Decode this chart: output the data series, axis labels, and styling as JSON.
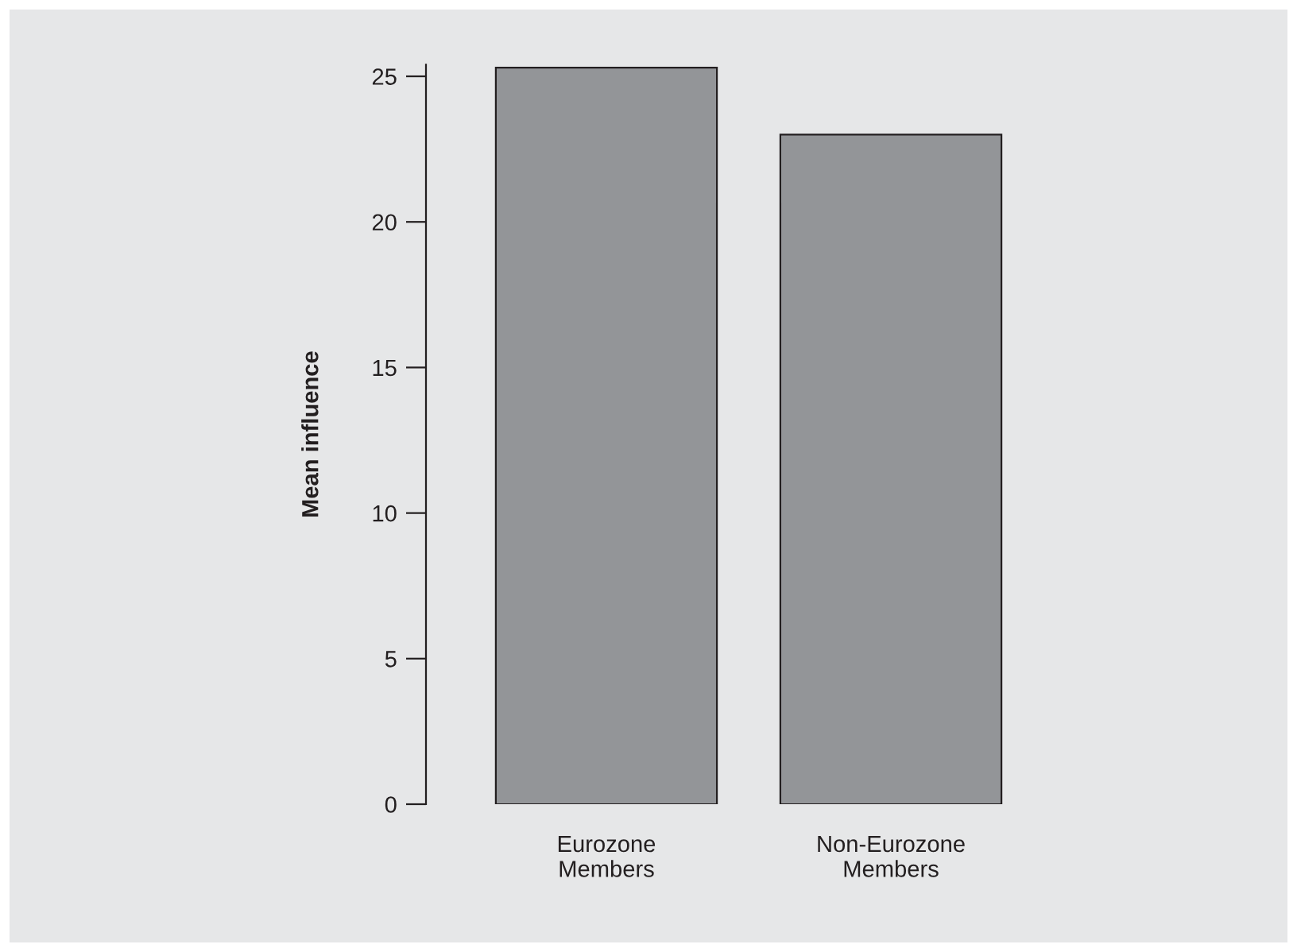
{
  "chart_data": {
    "type": "bar",
    "ylabel": "Mean influence",
    "categories": [
      "Eurozone\nMembers",
      "Non-Eurozone\nMembers"
    ],
    "values": [
      25.3,
      23.0
    ],
    "color": "#939598",
    "ylim": [
      0,
      25.4
    ],
    "yticks": [
      0,
      5,
      10,
      15,
      20,
      25
    ],
    "grid": false
  }
}
